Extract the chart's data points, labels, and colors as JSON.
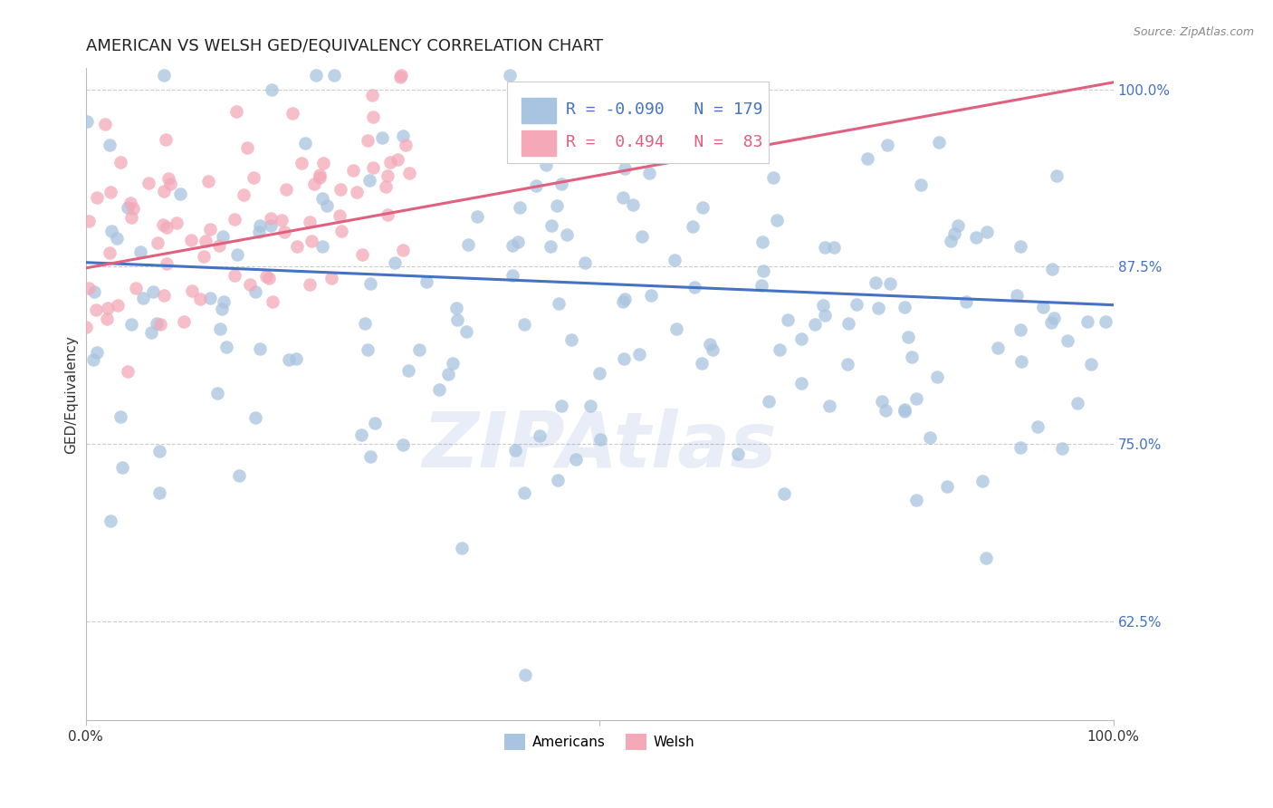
{
  "title": "AMERICAN VS WELSH GED/EQUIVALENCY CORRELATION CHART",
  "source": "Source: ZipAtlas.com",
  "ylabel": "GED/Equivalency",
  "american_R": -0.09,
  "american_N": 179,
  "welsh_R": 0.494,
  "welsh_N": 83,
  "xlim": [
    0.0,
    1.0
  ],
  "ylim": [
    0.555,
    1.015
  ],
  "yticks": [
    0.625,
    0.75,
    0.875,
    1.0
  ],
  "ytick_labels": [
    "62.5%",
    "75.0%",
    "87.5%",
    "100.0%"
  ],
  "american_color": "#a8c4e0",
  "welsh_color": "#f4a8b8",
  "american_line_color": "#4472c4",
  "welsh_line_color": "#e06080",
  "background_color": "#ffffff",
  "title_fontsize": 13,
  "label_fontsize": 11,
  "tick_fontsize": 11,
  "legend_fontsize": 13,
  "watermark": "ZIPAtlas"
}
